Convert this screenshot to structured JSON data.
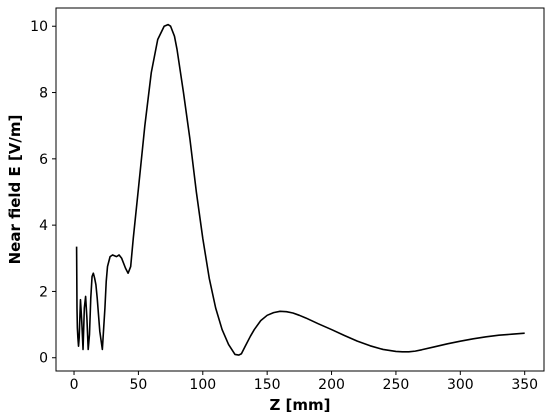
{
  "chart_data": {
    "type": "line",
    "title": "",
    "xlabel": "Z [mm]",
    "ylabel": "Near field E [V/m]",
    "xlim": [
      -14,
      365
    ],
    "ylim": [
      -0.4,
      10.55
    ],
    "xticks": [
      0,
      50,
      100,
      150,
      200,
      250,
      300,
      350
    ],
    "yticks": [
      0,
      2,
      4,
      6,
      8,
      10
    ],
    "grid": false,
    "legend": "none",
    "series": [
      {
        "color": "#000000",
        "x": [
          2.0,
          2.3,
          2.6,
          3.0,
          3.5,
          4.0,
          5.0,
          6.0,
          7.0,
          8.0,
          9.0,
          10.0,
          11.0,
          12.0,
          13.0,
          14.0,
          15.0,
          16.0,
          17.0,
          18.0,
          20.0,
          22.0,
          24.0,
          25.0,
          26.0,
          28.0,
          30.0,
          33.0,
          35.0,
          37.0,
          40.0,
          42.0,
          44.0,
          46.0,
          50.0,
          55.0,
          60.0,
          65.0,
          70.0,
          73.0,
          75.0,
          78.0,
          80.0,
          85.0,
          90.0,
          95.0,
          100.0,
          105.0,
          110.0,
          115.0,
          120.0,
          125.0,
          128.0,
          130.0,
          133.0,
          137.0,
          140.0,
          145.0,
          150.0,
          155.0,
          160.0,
          165.0,
          170.0,
          175.0,
          180.0,
          190.0,
          200.0,
          210.0,
          220.0,
          230.0,
          240.0,
          250.0,
          255.0,
          260.0,
          265.0,
          270.0,
          280.0,
          290.0,
          300.0,
          310.0,
          320.0,
          330.0,
          340.0,
          350.0
        ],
        "y": [
          3.35,
          1.5,
          0.9,
          0.6,
          0.35,
          0.6,
          1.75,
          1.1,
          0.25,
          1.5,
          1.85,
          1.2,
          0.25,
          0.7,
          1.8,
          2.45,
          2.55,
          2.4,
          2.2,
          1.8,
          0.8,
          0.25,
          1.5,
          2.3,
          2.75,
          3.05,
          3.1,
          3.05,
          3.1,
          3.0,
          2.7,
          2.55,
          2.75,
          3.6,
          5.1,
          7.0,
          8.6,
          9.6,
          10.0,
          10.05,
          10.0,
          9.7,
          9.3,
          8.0,
          6.6,
          5.0,
          3.6,
          2.4,
          1.5,
          0.85,
          0.4,
          0.1,
          0.08,
          0.12,
          0.35,
          0.65,
          0.85,
          1.12,
          1.28,
          1.36,
          1.4,
          1.39,
          1.35,
          1.28,
          1.2,
          1.02,
          0.85,
          0.67,
          0.5,
          0.36,
          0.25,
          0.19,
          0.18,
          0.18,
          0.2,
          0.24,
          0.33,
          0.42,
          0.5,
          0.57,
          0.63,
          0.68,
          0.71,
          0.74
        ]
      }
    ]
  }
}
